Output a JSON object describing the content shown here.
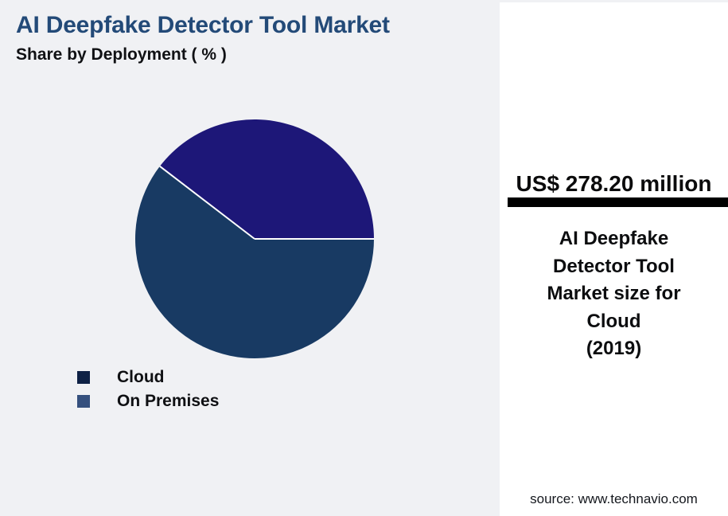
{
  "page": {
    "background": "#f0f1f4"
  },
  "header": {
    "title": "AI Deepfake Detector Tool Market",
    "title_color": "#234a78",
    "subtitle": "Share by Deployment ( % )"
  },
  "chart_data": {
    "type": "pie",
    "title": "AI Deepfake Detector Tool Market",
    "subtitle": "Share by Deployment ( % )",
    "start_angle_deg": 0,
    "direction": "clockwise",
    "segments": [
      {
        "label": "Cloud",
        "value_pct": 60.4,
        "color": "#183a63",
        "legend_marker_color": "#0e2145"
      },
      {
        "label": "On Premises",
        "value_pct": 39.6,
        "color": "#1d1778",
        "legend_marker_color": "#35507e"
      }
    ],
    "divider_color": "#ffffff",
    "legend_position": "bottom-left"
  },
  "stat_panel": {
    "background": "#ffffff",
    "value": "US$ 278.20 million",
    "divider_color": "#000000",
    "description": "AI Deepfake\nDetector Tool\nMarket size for\nCloud\n(2019)",
    "source": "source: www.technavio.com"
  }
}
